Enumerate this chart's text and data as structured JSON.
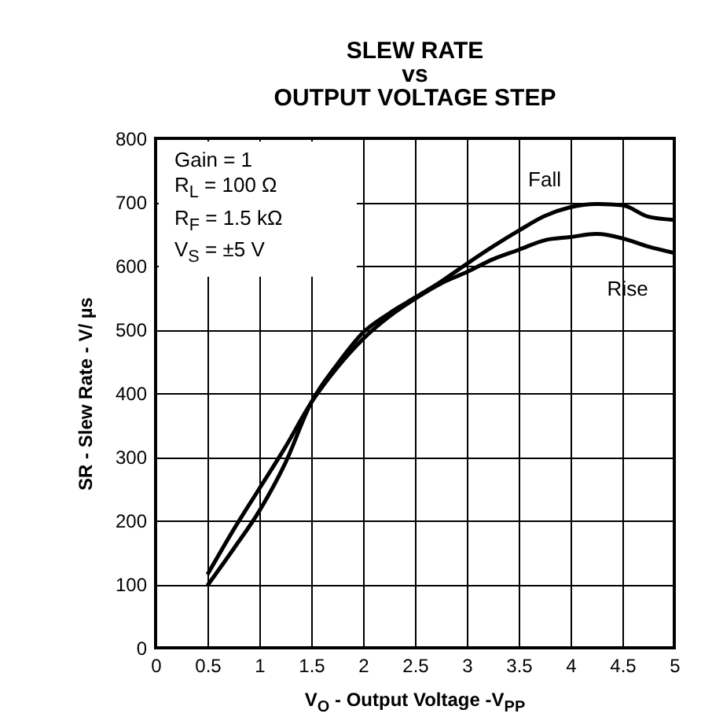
{
  "chart_data": {
    "type": "line",
    "title": "SLEW RATE\nvs\nOUTPUT VOLTAGE STEP",
    "xlabel": "V$_{O}$ - Output Voltage -V$_{PP}$",
    "ylabel": "SR - Slew Rate - V/ µs",
    "annotations": [
      "Gain = 1",
      "R$_{L}$ = 100 Ω",
      "R$_{F}$ = 1.5 kΩ",
      "V$_{S}$ = ±5 V"
    ],
    "x": [
      0.5,
      0.75,
      1,
      1.25,
      1.5,
      1.75,
      2,
      2.25,
      2.5,
      2.75,
      3,
      3.25,
      3.5,
      3.75,
      4,
      4.25,
      4.5,
      4.75,
      5
    ],
    "series": [
      {
        "name": "Fall",
        "color": "#000000",
        "values": [
          98,
          155,
          215,
          290,
          385,
          445,
          495,
          525,
          550,
          575,
          603,
          630,
          655,
          678,
          692,
          697,
          695,
          677,
          672
        ]
      },
      {
        "name": "Rise",
        "color": "#000000",
        "values": [
          115,
          185,
          250,
          315,
          385,
          440,
          485,
          520,
          548,
          572,
          590,
          610,
          625,
          640,
          645,
          650,
          643,
          630,
          620
        ]
      }
    ],
    "xlim": [
      0,
      5
    ],
    "xticks": [
      0,
      0.5,
      1,
      1.5,
      2,
      2.5,
      3,
      3.5,
      4,
      4.5,
      5
    ],
    "ylim": [
      0,
      800
    ],
    "yticks": [
      0,
      100,
      200,
      300,
      400,
      500,
      600,
      700,
      800
    ],
    "grid": true,
    "legend": false,
    "marker": "none",
    "line_style": "solid"
  }
}
